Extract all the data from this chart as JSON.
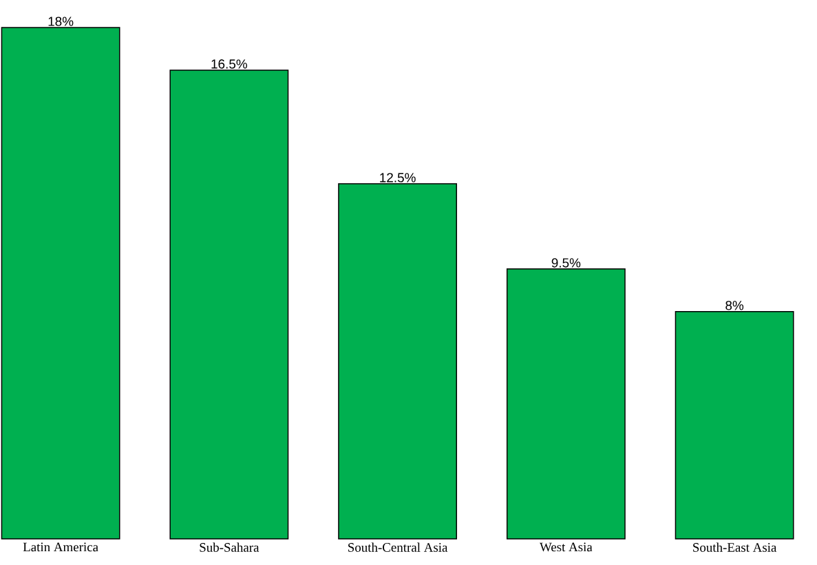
{
  "chart_data": {
    "type": "bar",
    "categories": [
      "Latin America",
      "Sub-Sahara",
      "South-Central Asia",
      "West Asia",
      "South-East Asia"
    ],
    "values": [
      18,
      16.5,
      12.5,
      9.5,
      8
    ],
    "value_labels": [
      "18%",
      "16.5%",
      "12.5%",
      "9.5%",
      "8%"
    ],
    "color": "#00b050",
    "tick_labels": "x"
  }
}
